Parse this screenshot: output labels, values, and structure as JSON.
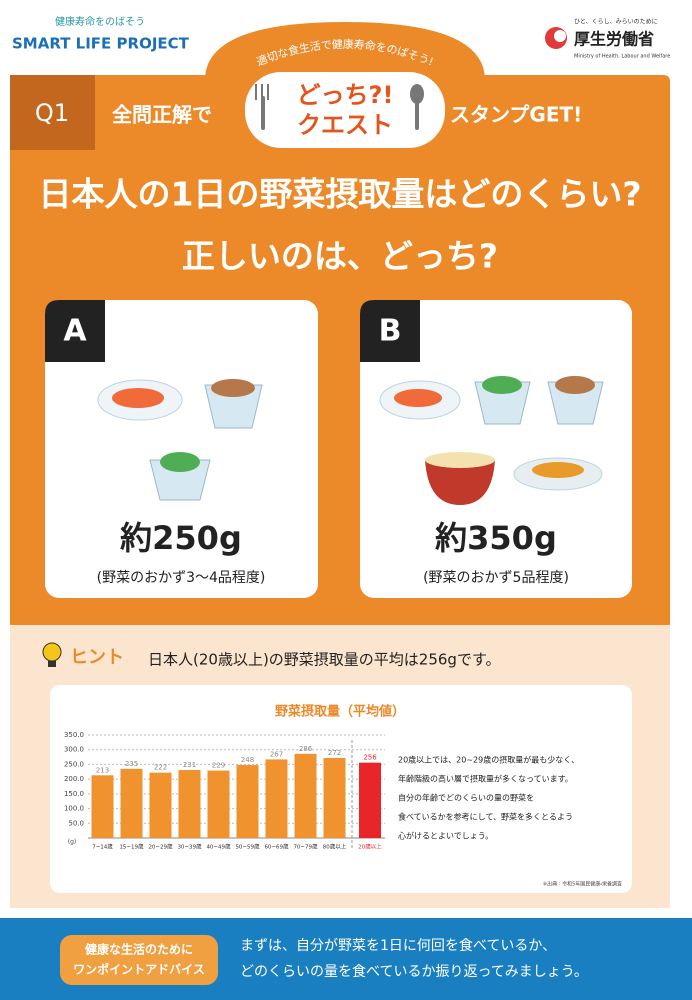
{
  "header": {
    "brand_tagline": "健康寿命をのばそう",
    "brand": "SMART LIFE PROJECT",
    "ministry_tagline": "ひと、くらし、みらいのために",
    "ministry": "厚生労働省",
    "ministry_en": "Ministry of Health, Labour and Welfare"
  },
  "banner": {
    "arc_text": "適切な食生活で健康寿命をのばそう!",
    "logo_line1": "どっち?!",
    "logo_line2": "クエスト",
    "q_label": "Q1",
    "left_text": "全問正解で",
    "right_text": "スタンプGET!"
  },
  "question": {
    "line1": "日本人の1日の野菜摂取量はどのくらい?",
    "line2": "正しいのは、どっち?"
  },
  "options": [
    {
      "label": "A",
      "amount": "約250g",
      "note": "(野菜のおかず3～4品程度)"
    },
    {
      "label": "B",
      "amount": "約350g",
      "note": "(野菜のおかず5品程度)"
    }
  ],
  "hint": {
    "label": "ヒント",
    "text": "日本人(20歳以上)の野菜摂取量の平均は256gです。"
  },
  "chart_data": {
    "type": "bar",
    "title": "野菜摂取量（平均値）",
    "y_unit": "(g)",
    "categories": [
      "7~14歳",
      "15~19歳",
      "20~29歳",
      "30~39歳",
      "40~49歳",
      "50~59歳",
      "60~69歳",
      "70~79歳",
      "80歳以上",
      "20歳以上"
    ],
    "values": [
      213,
      235,
      222,
      231,
      229,
      248,
      267,
      286,
      272,
      256
    ],
    "colors": [
      "#f0922e",
      "#f0922e",
      "#f0922e",
      "#f0922e",
      "#f0922e",
      "#f0922e",
      "#f0922e",
      "#f0922e",
      "#f0922e",
      "#e8262a"
    ],
    "ylim": [
      0,
      350
    ],
    "yticks": [
      {
        "value": 50,
        "label": "50.0"
      },
      {
        "value": 100,
        "label": "100.0"
      },
      {
        "value": 150,
        "label": "150.0"
      },
      {
        "value": 200,
        "label": "200.0"
      },
      {
        "value": 250,
        "label": "250.0"
      },
      {
        "value": 300,
        "label": "300.0"
      },
      {
        "value": 350,
        "label": "350.0"
      }
    ],
    "grid": true
  },
  "chart_note": [
    "20歳以上では、20~29歳の摂取量が最も少なく、",
    "年齢階級の高い層で摂取量が多くなっています。",
    "自分の年齢でどのくらいの量の野菜を",
    "食べているかを参考にして、野菜を多くとるよう",
    "心がけるとよいでしょう。"
  ],
  "source": "※出典：令和5年国民健康・栄養調査",
  "footer": {
    "badge": [
      "健康な生活のために",
      "ワンポイントアドバイス"
    ],
    "text": [
      "まずは、自分が野菜を1日に何回を食べているか、",
      "どのくらいの量を食べているか振り返ってみましょう。"
    ]
  }
}
